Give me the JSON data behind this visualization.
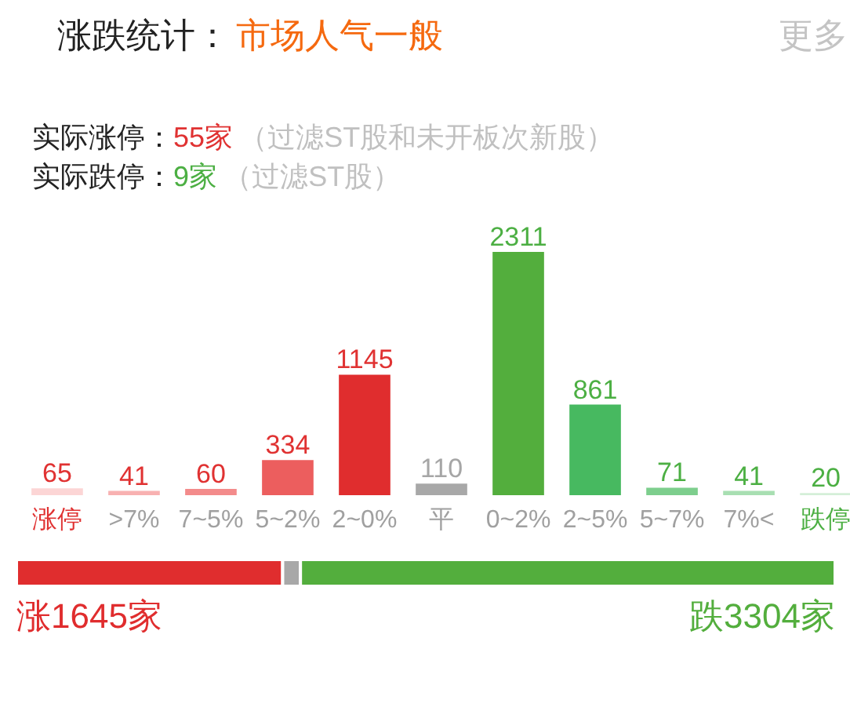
{
  "chart_data": [
    {
      "type": "bar",
      "title": "涨跌统计：",
      "subtitle": "市场人气一般",
      "annotations": [
        "更多",
        "实际涨停：",
        "55家",
        "（过滤ST股和未开板次新股）",
        "实际跌停：",
        "9家",
        "（过滤ST股）"
      ],
      "categories": [
        "涨停",
        ">7%",
        "7~5%",
        "5~2%",
        "2~0%",
        "平",
        "0~2%",
        "2~5%",
        "5~7%",
        "7%<",
        "跌停"
      ],
      "values": [
        65,
        41,
        60,
        334,
        1145,
        110,
        2311,
        861,
        71,
        41,
        20
      ],
      "colors": [
        "#fcd5d5",
        "#f8b1b1",
        "#f38b8b",
        "#ec5e5e",
        "#e02d2e",
        "#a8a8a8",
        "#53ae3d",
        "#47b960",
        "#7dce8d",
        "#a8dfb2",
        "#d4efd8"
      ],
      "data_labels": true,
      "tick_labels": "x"
    },
    {
      "type": "bar",
      "orientation": "horizontal",
      "stacked": true,
      "categories": [
        null
      ],
      "tick_labels": false,
      "series": [
        {
          "color": "#e02d2e",
          "values": [
            1645
          ],
          "value_labels": [
            "涨1645家"
          ]
        },
        {
          "color": "#a8a8a8",
          "values": [
            110
          ]
        },
        {
          "color": "#53ae3d",
          "values": [
            3304
          ],
          "value_labels": [
            "跌3304家"
          ]
        }
      ]
    }
  ]
}
